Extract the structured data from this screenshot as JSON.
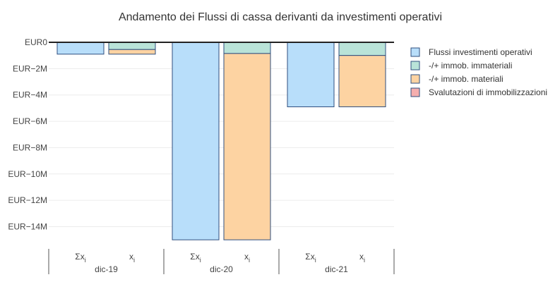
{
  "chart_data": {
    "type": "bar",
    "title": "Andamento dei Flussi di cassa derivanti da investimenti operativi",
    "y_tick_labels": [
      "EUR0",
      "EUR−2M",
      "EUR−4M",
      "EUR−6M",
      "EUR−8M",
      "EUR−10M",
      "EUR−12M",
      "EUR−14M"
    ],
    "y_tick_values": [
      0,
      -2,
      -4,
      -6,
      -8,
      -10,
      -12,
      -14
    ],
    "ylim": [
      -15.3,
      0.3
    ],
    "y_unit": "M EUR",
    "grid": true,
    "legend_position": "right",
    "groups": [
      {
        "label": "dic-19",
        "bars": [
          {
            "label": "Σx",
            "sub": "i",
            "segments": [
              {
                "series": "Flussi investimenti operativi",
                "from": 0,
                "to": -0.9
              }
            ]
          },
          {
            "label": "x",
            "sub": "i",
            "segments": [
              {
                "series": "-/+ immob. immateriali",
                "from": 0,
                "to": -0.55
              },
              {
                "series": "-/+ immob. materiali",
                "from": -0.55,
                "to": -0.9
              }
            ]
          }
        ]
      },
      {
        "label": "dic-20",
        "bars": [
          {
            "label": "Σx",
            "sub": "i",
            "segments": [
              {
                "series": "Flussi investimenti operativi",
                "from": 0,
                "to": -15.0
              }
            ]
          },
          {
            "label": "x",
            "sub": "i",
            "segments": [
              {
                "series": "-/+ immob. immateriali",
                "from": 0,
                "to": -0.85
              },
              {
                "series": "-/+ immob. materiali",
                "from": -0.85,
                "to": -15.0
              }
            ]
          }
        ]
      },
      {
        "label": "dic-21",
        "bars": [
          {
            "label": "Σx",
            "sub": "i",
            "segments": [
              {
                "series": "Flussi investimenti operativi",
                "from": 0,
                "to": -4.9
              }
            ]
          },
          {
            "label": "x",
            "sub": "i",
            "segments": [
              {
                "series": "-/+ immob. immateriali",
                "from": 0,
                "to": -1.0
              },
              {
                "series": "-/+ immob. materiali",
                "from": -1.0,
                "to": -4.9
              }
            ]
          }
        ]
      }
    ],
    "legend": [
      {
        "name": "Flussi investimenti operativi",
        "color": "#b8defa"
      },
      {
        "name": "-/+ immob. immateriali",
        "color": "#b9e3d8"
      },
      {
        "name": "-/+ immob. materiali",
        "color": "#fdd3a2"
      },
      {
        "name": "Svalutazioni di immobilizzazioni",
        "color": "#f5aeae"
      }
    ],
    "colors": {
      "bar_stroke": "#2f4f7f",
      "zero_line": "#222222",
      "grid": "#ececec"
    }
  }
}
